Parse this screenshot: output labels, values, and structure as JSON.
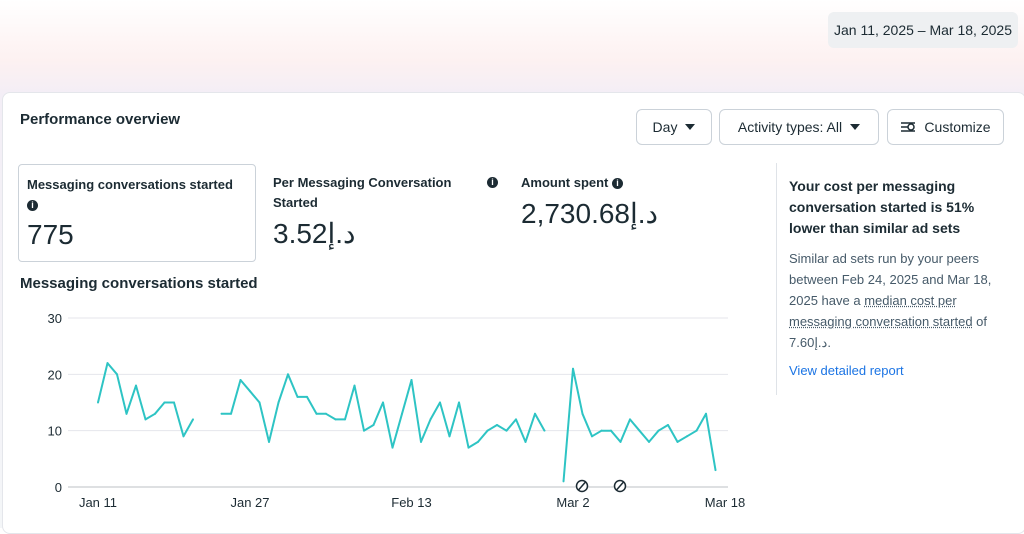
{
  "date_range": "Jan 11, 2025 – Mar 18, 2025",
  "performance_overview": {
    "title": "Performance overview",
    "day_label": "Day",
    "activity_label": "Activity types: All",
    "customize_label": "Customize"
  },
  "metrics": [
    {
      "label": "Messaging conversations started",
      "value": "775"
    },
    {
      "label": "Per Messaging Conversation Started",
      "value": "3.52د.إ"
    },
    {
      "label": "Amount spent",
      "value": "2,730.68د.إ"
    }
  ],
  "chart_title": "Messaging conversations started",
  "insight": {
    "title": "Your cost per messaging conversation started is 51% lower than similar ad sets",
    "body_prefix": "Similar ad sets run by your peers between Feb 24, 2025 and Mar 18, 2025 have a ",
    "body_link": "median cost per messaging conversation started",
    "body_suffix": " of 7.60د.إ.",
    "link": "View detailed report"
  },
  "colors": {
    "line": "#2ec4c4",
    "accent_link": "#1b74e4"
  },
  "chart_data": {
    "type": "line",
    "title": "Messaging conversations started",
    "xlabel": "",
    "ylabel": "",
    "ylim": [
      0,
      30
    ],
    "yticks": [
      0,
      10,
      20,
      30
    ],
    "xtick_labels": [
      "Jan 11",
      "Jan 27",
      "Feb 13",
      "Mar 2",
      "Mar 18"
    ],
    "xtick_days": [
      0,
      16,
      33,
      50,
      66
    ],
    "start_date": "Jan 11, 2025",
    "grid": true,
    "segments": [
      {
        "start_day": 0,
        "values": [
          15,
          22,
          20,
          13,
          18,
          12,
          13,
          15,
          15,
          9,
          12
        ]
      },
      {
        "start_day": 13,
        "values": [
          13,
          13,
          19,
          17,
          15,
          8,
          15,
          20,
          16,
          16,
          13,
          13,
          12,
          12,
          18,
          10,
          11,
          15,
          7,
          13,
          19,
          8,
          12,
          15,
          9,
          15,
          7,
          8,
          10,
          11,
          10,
          12,
          8,
          13,
          10
        ]
      },
      {
        "start_day": 49,
        "values": [
          1,
          21,
          13,
          9,
          10,
          10,
          8,
          12,
          10,
          8,
          10,
          11,
          8,
          9,
          10,
          13,
          3
        ]
      }
    ],
    "markers": [
      "gap-marker-icon",
      "gap-marker-icon"
    ]
  }
}
